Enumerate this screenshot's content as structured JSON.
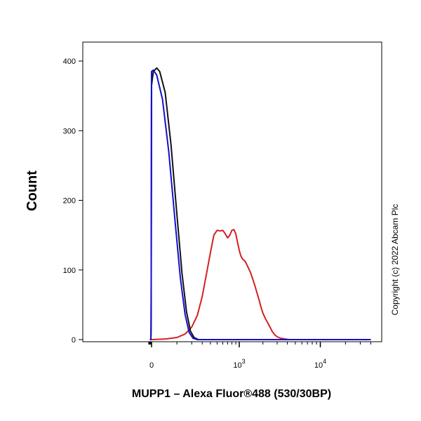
{
  "chart_data": {
    "type": "line",
    "subtype": "flow-cytometry-histogram",
    "xlabel": "MUPP1 – Alexa Fluor®488 (530/30BP)",
    "ylabel": "Count",
    "x_scale": "biexponential",
    "x_tick_labels": [
      {
        "value": 0,
        "label": "0",
        "exp": ""
      },
      {
        "value": 1000,
        "label": "10",
        "exp": "3"
      },
      {
        "value": 10000,
        "label": "10",
        "exp": "4"
      }
    ],
    "ylim": [
      0,
      420
    ],
    "y_ticks": [
      0,
      100,
      200,
      300,
      400
    ],
    "legend": "none",
    "grid": false,
    "series": [
      {
        "color": "#d42020",
        "points": [
          [
            -600,
            0
          ],
          [
            -50,
            0
          ],
          [
            50,
            1
          ],
          [
            100,
            3
          ],
          [
            150,
            8
          ],
          [
            200,
            18
          ],
          [
            250,
            35
          ],
          [
            300,
            62
          ],
          [
            350,
            95
          ],
          [
            400,
            125
          ],
          [
            450,
            150
          ],
          [
            500,
            157
          ],
          [
            550,
            156
          ],
          [
            600,
            157
          ],
          [
            650,
            152
          ],
          [
            700,
            146
          ],
          [
            750,
            150
          ],
          [
            800,
            157
          ],
          [
            850,
            158
          ],
          [
            900,
            152
          ],
          [
            950,
            140
          ],
          [
            1000,
            128
          ],
          [
            1050,
            120
          ],
          [
            1100,
            116
          ],
          [
            1150,
            114
          ],
          [
            1200,
            112
          ],
          [
            1250,
            108
          ],
          [
            1300,
            104
          ],
          [
            1400,
            96
          ],
          [
            1500,
            86
          ],
          [
            1600,
            76
          ],
          [
            1700,
            66
          ],
          [
            1800,
            56
          ],
          [
            1900,
            46
          ],
          [
            2000,
            38
          ],
          [
            2150,
            30
          ],
          [
            2300,
            24
          ],
          [
            2450,
            18
          ],
          [
            2600,
            12
          ],
          [
            2800,
            7
          ],
          [
            3000,
            4
          ],
          [
            3300,
            2
          ],
          [
            3700,
            1
          ],
          [
            4200,
            0
          ],
          [
            40000,
            0
          ]
        ]
      },
      {
        "color": "#111111",
        "points": [
          [
            -600,
            0
          ],
          [
            -300,
            0
          ],
          [
            -240,
            2
          ],
          [
            -200,
            8
          ],
          [
            -160,
            28
          ],
          [
            -120,
            80
          ],
          [
            -90,
            150
          ],
          [
            -60,
            240
          ],
          [
            -30,
            320
          ],
          [
            -10,
            365
          ],
          [
            5,
            385
          ],
          [
            15,
            390
          ],
          [
            25,
            385
          ],
          [
            45,
            355
          ],
          [
            70,
            280
          ],
          [
            100,
            180
          ],
          [
            130,
            95
          ],
          [
            160,
            40
          ],
          [
            190,
            12
          ],
          [
            220,
            3
          ],
          [
            260,
            0
          ],
          [
            40000,
            0
          ]
        ]
      },
      {
        "color": "#1010d0",
        "points": [
          [
            -600,
            0
          ],
          [
            -300,
            0
          ],
          [
            -250,
            2
          ],
          [
            -210,
            9
          ],
          [
            -170,
            32
          ],
          [
            -130,
            90
          ],
          [
            -100,
            165
          ],
          [
            -70,
            255
          ],
          [
            -40,
            330
          ],
          [
            -20,
            370
          ],
          [
            -5,
            385
          ],
          [
            5,
            387
          ],
          [
            15,
            380
          ],
          [
            35,
            345
          ],
          [
            60,
            270
          ],
          [
            90,
            170
          ],
          [
            120,
            88
          ],
          [
            150,
            36
          ],
          [
            180,
            10
          ],
          [
            210,
            2
          ],
          [
            250,
            0
          ],
          [
            40000,
            0
          ]
        ]
      }
    ]
  },
  "copyright": "Copyright (c) 2022 Abcam Plc"
}
